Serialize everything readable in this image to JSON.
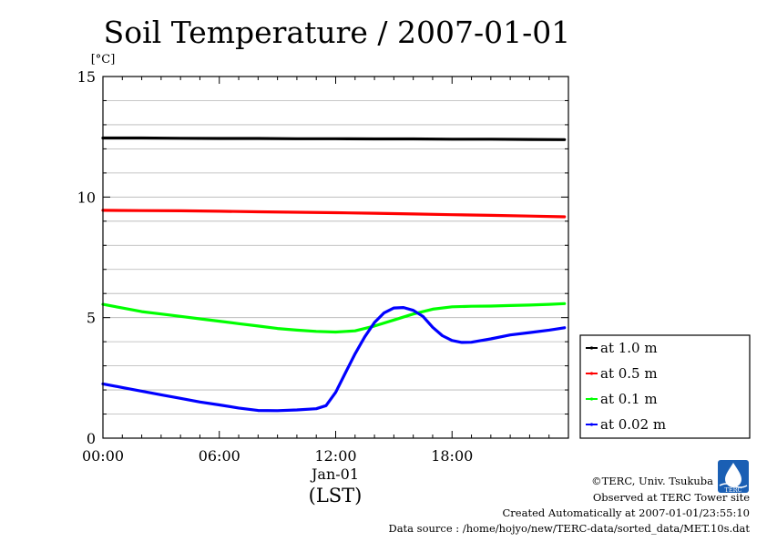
{
  "chart_data": {
    "type": "line",
    "title": "Soil Temperature / 2007-01-01",
    "ylabel": "[°C]",
    "ylim": [
      0,
      15
    ],
    "y_ticks": [
      0,
      5,
      10,
      15
    ],
    "y_minor_step": 1,
    "xlim": [
      0,
      24
    ],
    "x_ticks": [
      {
        "value": 0,
        "label": "00:00"
      },
      {
        "value": 6,
        "label": "06:00"
      },
      {
        "value": 12,
        "label": "12:00"
      },
      {
        "value": 18,
        "label": "18:00"
      }
    ],
    "x_date_label": "Jan-01",
    "x_timezone_label": "(LST)",
    "grid": true,
    "legend_position": "right",
    "series": [
      {
        "name": "at 1.0 m",
        "color": "#000000",
        "x": [
          0,
          2,
          4,
          6,
          8,
          10,
          12,
          14,
          16,
          18,
          20,
          22,
          23.8
        ],
        "y": [
          12.45,
          12.45,
          12.44,
          12.43,
          12.43,
          12.42,
          12.42,
          12.41,
          12.41,
          12.4,
          12.4,
          12.39,
          12.38
        ]
      },
      {
        "name": "at 0.5 m",
        "color": "#ff0000",
        "x": [
          0,
          2,
          4,
          6,
          8,
          10,
          12,
          14,
          16,
          18,
          20,
          22,
          23.8
        ],
        "y": [
          9.45,
          9.44,
          9.43,
          9.41,
          9.39,
          9.37,
          9.35,
          9.33,
          9.3,
          9.27,
          9.24,
          9.21,
          9.18
        ]
      },
      {
        "name": "at 0.1 m",
        "color": "#00ff00",
        "x": [
          0,
          1,
          2,
          3,
          4,
          5,
          6,
          7,
          8,
          9,
          10,
          11,
          12,
          13,
          14,
          15,
          16,
          17,
          18,
          19,
          20,
          21,
          22,
          23,
          23.8
        ],
        "y": [
          5.55,
          5.4,
          5.25,
          5.15,
          5.05,
          4.95,
          4.85,
          4.75,
          4.65,
          4.55,
          4.48,
          4.43,
          4.4,
          4.45,
          4.65,
          4.9,
          5.15,
          5.35,
          5.45,
          5.47,
          5.48,
          5.5,
          5.52,
          5.55,
          5.58
        ]
      },
      {
        "name": "at 0.02 m",
        "color": "#0000ff",
        "x": [
          0,
          1,
          2,
          3,
          4,
          5,
          6,
          7,
          8,
          9,
          10,
          11,
          11.5,
          12,
          12.5,
          13,
          13.5,
          14,
          14.5,
          15,
          15.5,
          16,
          16.5,
          17,
          17.5,
          18,
          18.5,
          19,
          20,
          21,
          22,
          23,
          23.8
        ],
        "y": [
          2.25,
          2.1,
          1.95,
          1.8,
          1.65,
          1.5,
          1.38,
          1.25,
          1.15,
          1.14,
          1.17,
          1.22,
          1.35,
          1.9,
          2.7,
          3.5,
          4.2,
          4.8,
          5.2,
          5.4,
          5.42,
          5.3,
          5.05,
          4.6,
          4.25,
          4.05,
          3.97,
          3.98,
          4.12,
          4.28,
          4.38,
          4.48,
          4.58
        ]
      }
    ]
  },
  "footer": {
    "copyright": "©TERC, Univ. Tsukuba",
    "site": "Observed at TERC Tower site",
    "created": "Created Automatically at 2007-01-01/23:55:10",
    "source": "Data source : /home/hojyo/new/TERC-data/sorted_data/MET.10s.dat",
    "logo_text": "TERC",
    "logo_color": "#1a5fb4"
  }
}
